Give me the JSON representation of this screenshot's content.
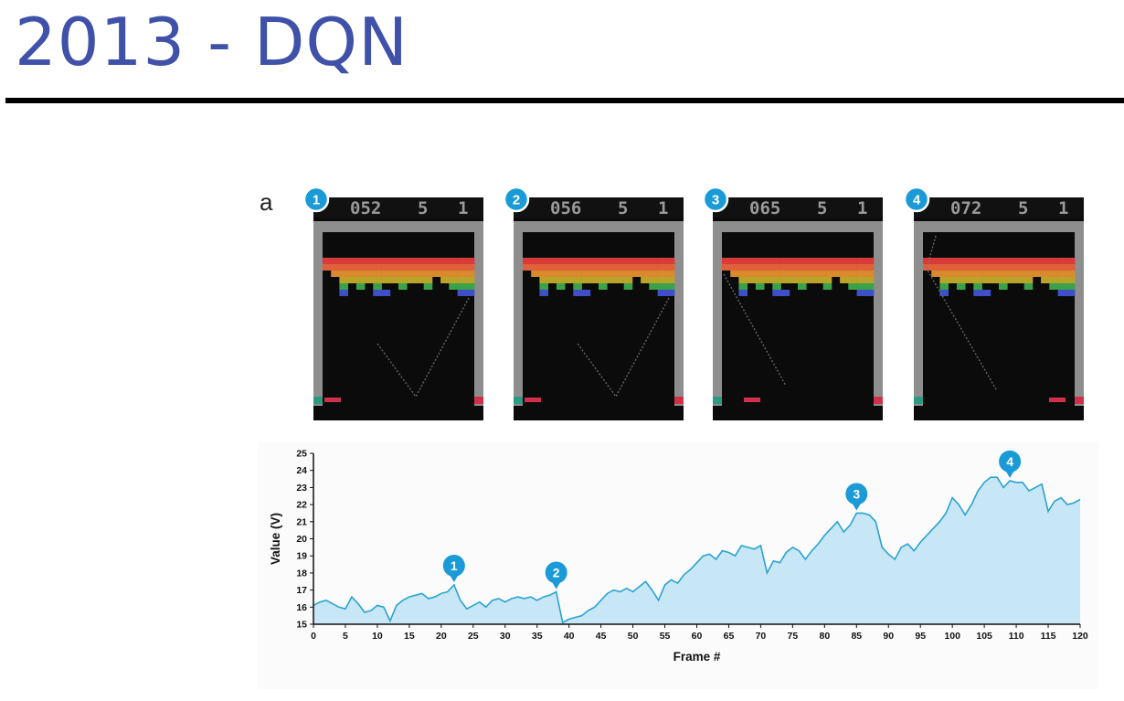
{
  "slide": {
    "title": "2013 - DQN"
  },
  "panel": {
    "letter": "a"
  },
  "frames": [
    {
      "marker": "1",
      "score": "052",
      "lives": "5",
      "player": "1",
      "ball_side": "right",
      "paddle": "left"
    },
    {
      "marker": "2",
      "score": "056",
      "lives": "5",
      "player": "1",
      "ball_side": "right",
      "paddle": "left"
    },
    {
      "marker": "3",
      "score": "065",
      "lives": "5",
      "player": "1",
      "ball_side": "left",
      "paddle": "mid"
    },
    {
      "marker": "4",
      "score": "072",
      "lives": "5",
      "player": "1",
      "ball_side": "left-top",
      "paddle": "right"
    }
  ],
  "colors": {
    "title": "#3f51a8",
    "accent_badge": "#1a9ad6",
    "area_fill": "#c7e6f6",
    "line": "#2aa3d0",
    "brick_rows": [
      "#d93a3a",
      "#e0603a",
      "#d88a2c",
      "#b9a32a",
      "#3aa34a",
      "#3f4fc7"
    ]
  },
  "chart_data": {
    "type": "area",
    "xlabel": "Frame #",
    "ylabel": "Value (V)",
    "xlim": [
      0,
      120
    ],
    "ylim": [
      15,
      25
    ],
    "xticks": [
      0,
      5,
      10,
      15,
      20,
      25,
      30,
      35,
      40,
      45,
      50,
      55,
      60,
      65,
      70,
      75,
      80,
      85,
      90,
      95,
      100,
      105,
      110,
      115,
      120
    ],
    "yticks": [
      15,
      16,
      17,
      18,
      19,
      20,
      21,
      22,
      23,
      24,
      25
    ],
    "x": [
      0,
      1,
      2,
      3,
      4,
      5,
      6,
      7,
      8,
      9,
      10,
      11,
      12,
      13,
      14,
      15,
      16,
      17,
      18,
      19,
      20,
      21,
      22,
      23,
      24,
      25,
      26,
      27,
      28,
      29,
      30,
      31,
      32,
      33,
      34,
      35,
      36,
      37,
      38,
      39,
      40,
      41,
      42,
      43,
      44,
      45,
      46,
      47,
      48,
      49,
      50,
      51,
      52,
      53,
      54,
      55,
      56,
      57,
      58,
      59,
      60,
      61,
      62,
      63,
      64,
      65,
      66,
      67,
      68,
      69,
      70,
      71,
      72,
      73,
      74,
      75,
      76,
      77,
      78,
      79,
      80,
      81,
      82,
      83,
      84,
      85,
      86,
      87,
      88,
      89,
      90,
      91,
      92,
      93,
      94,
      95,
      96,
      97,
      98,
      99,
      100,
      101,
      102,
      103,
      104,
      105,
      106,
      107,
      108,
      109,
      110,
      111,
      112,
      113,
      114,
      115,
      116,
      117,
      118,
      119,
      120
    ],
    "values": [
      16.1,
      16.3,
      16.4,
      16.2,
      16.0,
      15.9,
      16.6,
      16.2,
      15.7,
      15.8,
      16.1,
      16.0,
      15.2,
      16.1,
      16.4,
      16.6,
      16.7,
      16.8,
      16.5,
      16.6,
      16.8,
      16.9,
      17.3,
      16.4,
      15.9,
      16.1,
      16.3,
      16.0,
      16.4,
      16.5,
      16.3,
      16.5,
      16.6,
      16.5,
      16.6,
      16.4,
      16.6,
      16.7,
      16.9,
      15.1,
      15.3,
      15.4,
      15.5,
      15.8,
      16.0,
      16.4,
      16.8,
      17.0,
      16.9,
      17.1,
      16.9,
      17.2,
      17.5,
      17.0,
      16.4,
      17.3,
      17.6,
      17.4,
      17.9,
      18.2,
      18.6,
      19.0,
      19.1,
      18.8,
      19.3,
      19.2,
      19.0,
      19.6,
      19.5,
      19.4,
      19.6,
      18.0,
      18.7,
      18.6,
      19.2,
      19.5,
      19.3,
      18.8,
      19.3,
      19.7,
      20.2,
      20.6,
      21.0,
      20.4,
      20.8,
      21.5,
      21.5,
      21.4,
      21.0,
      19.5,
      19.1,
      18.8,
      19.5,
      19.7,
      19.3,
      19.8,
      20.2,
      20.6,
      21.0,
      21.5,
      22.4,
      22.0,
      21.4,
      22.0,
      22.8,
      23.3,
      23.6,
      23.6,
      23.0,
      23.4,
      23.3,
      23.3,
      22.8,
      23.0,
      23.2,
      21.6,
      22.2,
      22.4,
      22.0,
      22.1,
      22.3
    ],
    "annotations": [
      {
        "label": "1",
        "x": 22,
        "y": 17.3
      },
      {
        "label": "2",
        "x": 38,
        "y": 16.9
      },
      {
        "label": "3",
        "x": 85,
        "y": 21.5
      },
      {
        "label": "4",
        "x": 109,
        "y": 23.4
      }
    ],
    "grid": false,
    "legend": "none"
  }
}
